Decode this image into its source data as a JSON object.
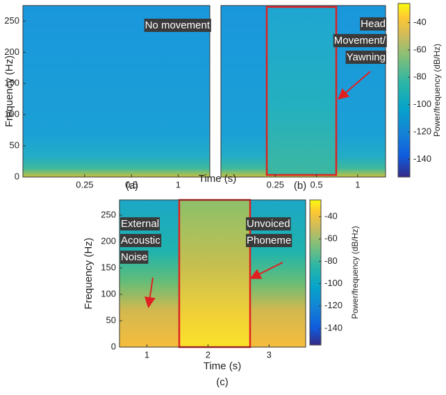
{
  "chart_data": [
    {
      "type": "spectrogram",
      "panel_label": "(a)",
      "ylabel": "Frequency (Hz)",
      "xlabel": "Time (s)",
      "ylim": [
        0,
        275
      ],
      "yticks": [
        0,
        50,
        100,
        150,
        200,
        250
      ],
      "xscale": "log",
      "xlim": [
        0.1,
        1.6
      ],
      "xticks": [
        0.25,
        0.5,
        1
      ],
      "annotations": [
        [
          "No movement"
        ]
      ]
    },
    {
      "type": "spectrogram",
      "panel_label": "(b)",
      "ylim": [
        0,
        275
      ],
      "xscale": "log",
      "xlim": [
        0.1,
        1.6
      ],
      "xticks": [
        0.25,
        0.5,
        1
      ],
      "annotations": [
        [
          "Head",
          "Movement/",
          "Yawning"
        ]
      ],
      "colorbar": {
        "label": "Power/frequency (dB/Hz)",
        "clim": [
          -153,
          -26
        ],
        "ticks": [
          -40,
          -60,
          -80,
          -100,
          -120,
          -140
        ]
      }
    },
    {
      "type": "spectrogram",
      "panel_label": "(c)",
      "ylabel": "Frequency (Hz)",
      "xlabel": "Time (s)",
      "ylim": [
        0,
        279
      ],
      "yticks": [
        0,
        50,
        100,
        150,
        200,
        250
      ],
      "xscale": "linear",
      "xlim": [
        0.55,
        3.6
      ],
      "xticks": [
        1,
        2,
        3
      ],
      "annotations": [
        [
          "External",
          "Acoustic",
          "Noise"
        ],
        [
          "Unvoiced",
          "Phoneme"
        ]
      ],
      "colorbar": {
        "label": "Power/frequency (dB/Hz)",
        "clim": [
          -155,
          -25
        ],
        "ticks": [
          -40,
          -60,
          -80,
          -100,
          -120,
          -140
        ]
      }
    }
  ]
}
